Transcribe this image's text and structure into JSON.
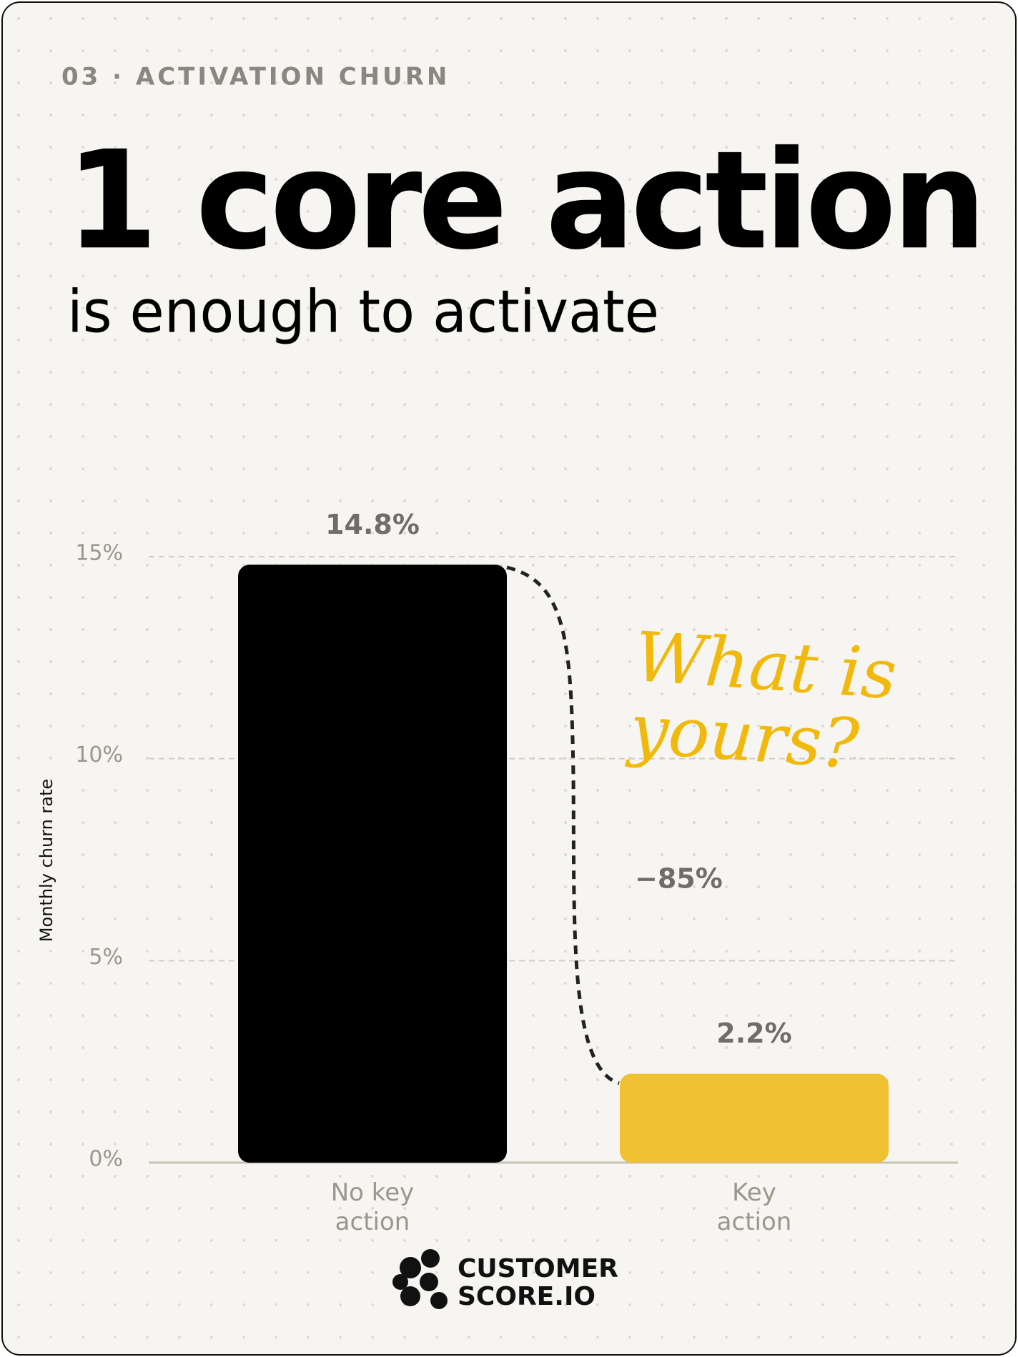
{
  "chart_data": {
    "type": "bar",
    "kicker": "03 · ACTIVATION CHURN",
    "title": "1 core action",
    "subtitle": "is enough to activate",
    "ylabel": "Monthly churn rate",
    "categories": [
      "No key action",
      "Key action"
    ],
    "values": [
      14.8,
      2.2
    ],
    "value_labels": [
      "14.8%",
      "2.2%"
    ],
    "colors": [
      "#000000",
      "#f0c132"
    ],
    "ylim": [
      0,
      15
    ],
    "yticks": [
      {
        "value": 0,
        "label": "0%"
      },
      {
        "value": 5,
        "label": "5%"
      },
      {
        "value": 10,
        "label": "10%"
      },
      {
        "value": 15,
        "label": "15%"
      }
    ],
    "grid": true,
    "change_label": "−85%",
    "callout": "What is yours?"
  },
  "logo": [
    "CUSTOMER",
    "SCORE.IO"
  ]
}
